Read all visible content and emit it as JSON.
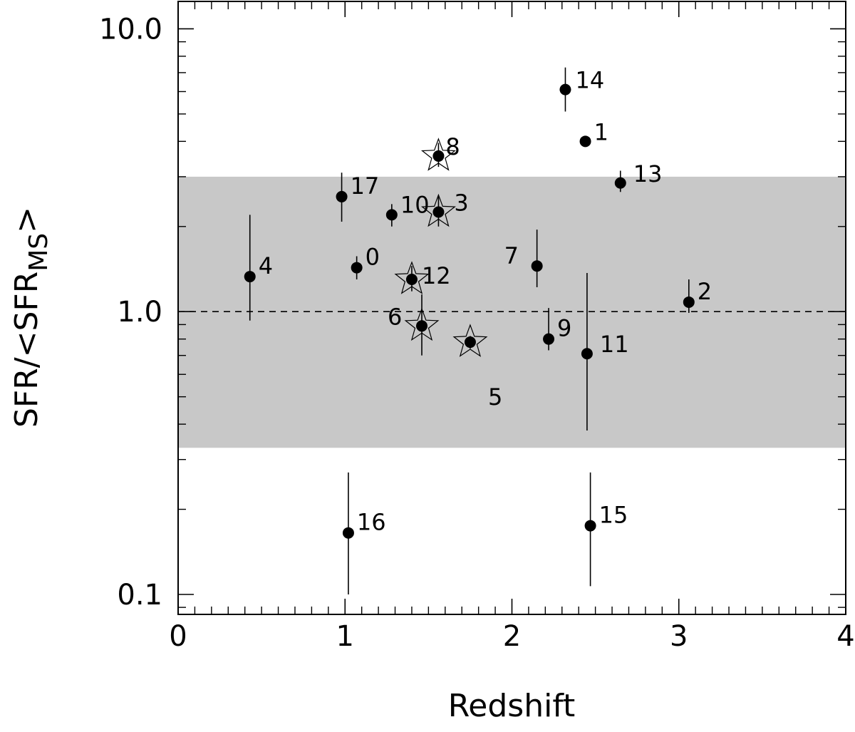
{
  "chart_data": {
    "type": "scatter",
    "xlabel": "Redshift",
    "ylabel": {
      "main": "SFR/<SFR",
      "sub": "MS",
      "close": ">"
    },
    "xlim": [
      0,
      4
    ],
    "ylim": [
      0.085,
      12.5
    ],
    "yscale": "log",
    "x_ticks": [
      "0",
      "1",
      "2",
      "3",
      "4"
    ],
    "y_ticks": [
      {
        "value": 0.1,
        "label": "0.1"
      },
      {
        "value": 1.0,
        "label": "1.0"
      },
      {
        "value": 10.0,
        "label": "10.0"
      }
    ],
    "band": {
      "ymin": 0.33,
      "ymax": 3.0,
      "color": "#c8c8c8"
    },
    "reference_line": {
      "y": 1.0,
      "style": "dashed"
    },
    "points": [
      {
        "id": "0",
        "x": 1.07,
        "y": 1.43,
        "err_lo": 1.3,
        "err_hi": 1.57,
        "star": false
      },
      {
        "id": "1",
        "x": 2.44,
        "y": 4.0,
        "err_lo": 3.85,
        "err_hi": 4.15,
        "star": false
      },
      {
        "id": "2",
        "x": 3.06,
        "y": 1.08,
        "err_lo": 0.99,
        "err_hi": 1.3,
        "star": false
      },
      {
        "id": "3",
        "x": 1.56,
        "y": 2.25,
        "err_lo": 2.0,
        "err_hi": 2.55,
        "star": true
      },
      {
        "id": "4",
        "x": 0.43,
        "y": 1.33,
        "err_lo": 0.93,
        "err_hi": 2.2,
        "star": false
      },
      {
        "id": "5",
        "x": 1.75,
        "y": 0.78,
        "err_lo": 0.74,
        "err_hi": 0.82,
        "star": true
      },
      {
        "id": "6",
        "x": 1.46,
        "y": 0.89,
        "err_lo": 0.7,
        "err_hi": 1.15,
        "star": true
      },
      {
        "id": "7",
        "x": 2.15,
        "y": 1.45,
        "err_lo": 1.22,
        "err_hi": 1.95,
        "star": false
      },
      {
        "id": "8",
        "x": 1.56,
        "y": 3.55,
        "err_lo": 3.25,
        "err_hi": 3.95,
        "star": true
      },
      {
        "id": "9",
        "x": 2.22,
        "y": 0.8,
        "err_lo": 0.73,
        "err_hi": 1.03,
        "star": false
      },
      {
        "id": "10",
        "x": 1.28,
        "y": 2.2,
        "err_lo": 2.0,
        "err_hi": 2.4,
        "star": false
      },
      {
        "id": "11",
        "x": 2.45,
        "y": 0.71,
        "err_lo": 0.38,
        "err_hi": 1.37,
        "star": false
      },
      {
        "id": "12",
        "x": 1.4,
        "y": 1.3,
        "err_lo": 1.18,
        "err_hi": 1.45,
        "star": true
      },
      {
        "id": "13",
        "x": 2.65,
        "y": 2.85,
        "err_lo": 2.65,
        "err_hi": 3.15,
        "star": false
      },
      {
        "id": "14",
        "x": 2.32,
        "y": 6.1,
        "err_lo": 5.1,
        "err_hi": 7.3,
        "star": false
      },
      {
        "id": "15",
        "x": 2.47,
        "y": 0.175,
        "err_lo": 0.107,
        "err_hi": 0.27,
        "star": false
      },
      {
        "id": "16",
        "x": 1.02,
        "y": 0.165,
        "err_lo": 0.1,
        "err_hi": 0.27,
        "star": false
      },
      {
        "id": "17",
        "x": 0.98,
        "y": 2.55,
        "err_lo": 2.08,
        "err_hi": 3.1,
        "star": false
      }
    ]
  }
}
